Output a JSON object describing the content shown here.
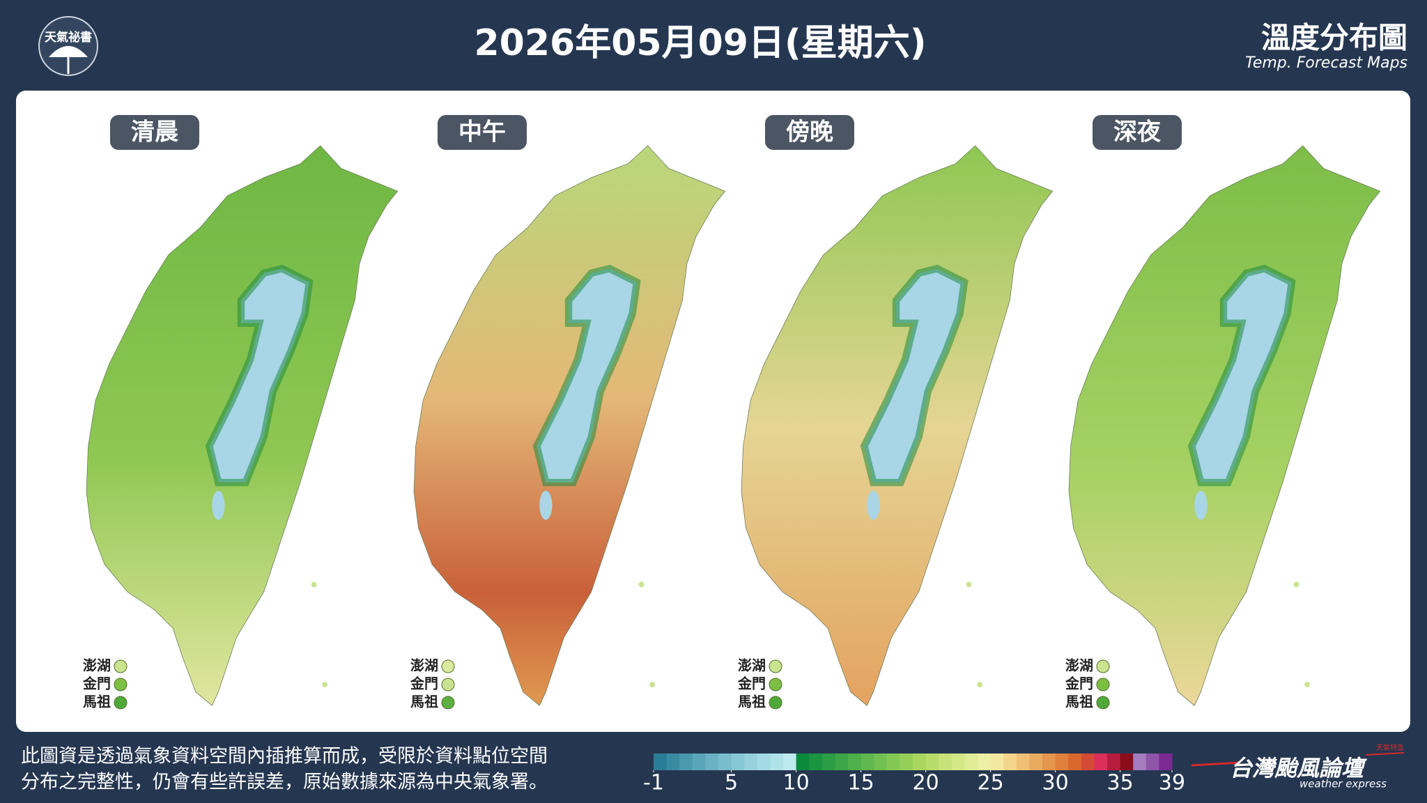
{
  "header": {
    "title": "2026年05月09日(星期六)",
    "logo_text": "天氣祕書",
    "map_title": "溫度分布圖",
    "map_subtitle": "Temp. Forecast Maps"
  },
  "panels": [
    {
      "label": "清晨",
      "islands": [
        {
          "name": "澎湖",
          "color": "#c9e38e"
        },
        {
          "name": "金門",
          "color": "#7cbf45"
        },
        {
          "name": "馬祖",
          "color": "#4fa83a"
        }
      ]
    },
    {
      "label": "中午",
      "islands": [
        {
          "name": "澎湖",
          "color": "#dde9a0"
        },
        {
          "name": "金門",
          "color": "#c9e38e"
        },
        {
          "name": "馬祖",
          "color": "#5cb041"
        }
      ]
    },
    {
      "label": "傍晚",
      "islands": [
        {
          "name": "澎湖",
          "color": "#c9e38e"
        },
        {
          "name": "金門",
          "color": "#7cbf45"
        },
        {
          "name": "馬祖",
          "color": "#4fa83a"
        }
      ]
    },
    {
      "label": "深夜",
      "islands": [
        {
          "name": "澎湖",
          "color": "#c9e38e"
        },
        {
          "name": "金門",
          "color": "#7cbf45"
        },
        {
          "name": "馬祖",
          "color": "#4fa83a"
        }
      ]
    }
  ],
  "note": [
    "此圖資是透過氣象資料空間內插推算而成，受限於資料點位空間",
    "分布之完整性，仍會有些許誤差，原始數據來源為中央氣象署。"
  ],
  "color_scale": {
    "range": [
      -1,
      39
    ],
    "ticks": [
      -1,
      5,
      10,
      15,
      20,
      25,
      30,
      35,
      39
    ],
    "colors": [
      "#2a7d96",
      "#3a8ba2",
      "#4a99ad",
      "#5aa6b8",
      "#6ab2c3",
      "#79bdcc",
      "#88c7d5",
      "#96d1dd",
      "#a3dae4",
      "#b0e2ea",
      "#bde9ef",
      "#0b8a3e",
      "#1a9441",
      "#2b9d44",
      "#3ca648",
      "#4eaf4b",
      "#60b84e",
      "#72c051",
      "#84c854",
      "#96cf58",
      "#a8d65e",
      "#b8dc6a",
      "#c7e278",
      "#d5e886",
      "#e1ec96",
      "#ecefa6",
      "#f4e8a0",
      "#f2d58a",
      "#eec075",
      "#e9ab60",
      "#e4964c",
      "#df803c",
      "#d9682f",
      "#d44a36",
      "#dd2f5c",
      "#b81c3c",
      "#8a0d1c",
      "#a57cbd",
      "#8f55a8",
      "#7a2a92"
    ]
  },
  "brand": {
    "name": "台灣颱風論壇",
    "tagline": "weather express",
    "badge": "天氣特急"
  }
}
